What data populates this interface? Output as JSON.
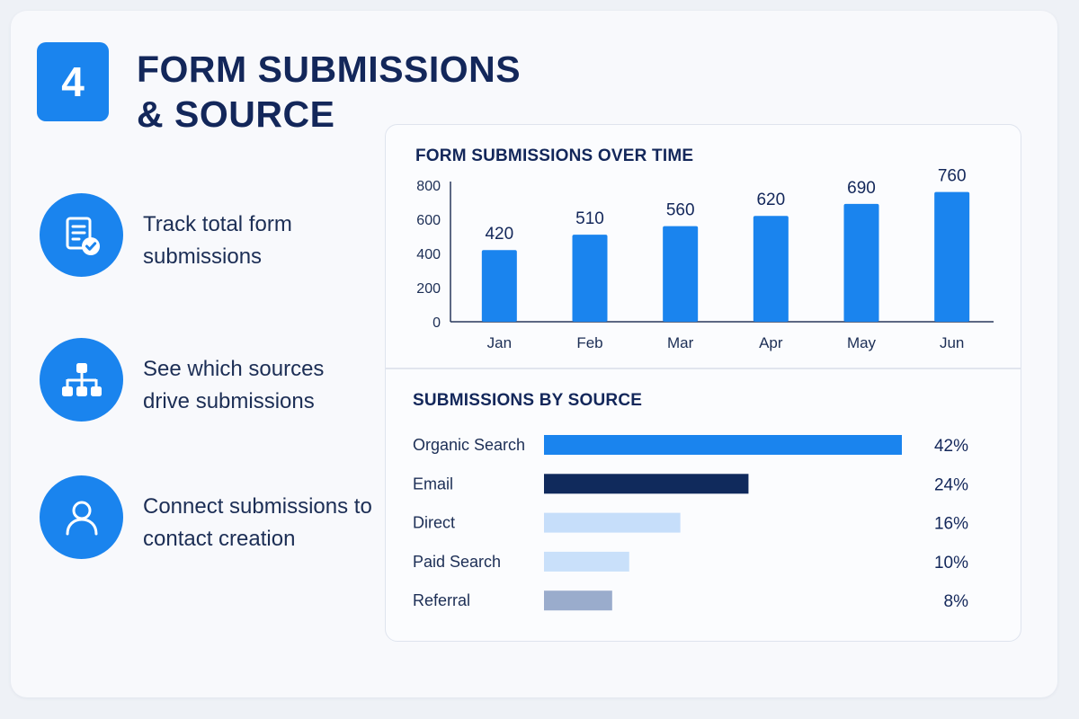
{
  "header": {
    "step_number": "4",
    "title": "FORM SUBMISSIONS\n& SOURCE"
  },
  "features": [
    {
      "icon": "form-check-icon",
      "text": "Track total form submissions"
    },
    {
      "icon": "hierarchy-icon",
      "text": "See which sources drive submissions"
    },
    {
      "icon": "user-icon",
      "text": "Connect submissions to contact creation"
    }
  ],
  "colors": {
    "accent": "#1a84ee",
    "navy": "#13275a",
    "bar_navy": "#102a5c",
    "bar_light": "#c6defa",
    "bar_gray": "#9aaccc"
  },
  "chart_data": [
    {
      "type": "bar",
      "title": "FORM SUBMISSIONS OVER TIME",
      "categories": [
        "Jan",
        "Feb",
        "Mar",
        "Apr",
        "May",
        "Jun"
      ],
      "values": [
        420,
        510,
        560,
        620,
        690,
        760
      ],
      "data_labels": [
        "420",
        "510",
        "560",
        "620",
        "690",
        "760"
      ],
      "yticks": [
        0,
        200,
        400,
        600,
        800
      ],
      "ylim": [
        0,
        800
      ],
      "xlabel": "",
      "ylabel": "",
      "grid": false,
      "color": "#1a84ee"
    },
    {
      "type": "bar",
      "orientation": "horizontal",
      "title": "SUBMISSIONS BY SOURCE",
      "categories": [
        "Organic Search",
        "Email",
        "Direct",
        "Paid Search",
        "Referral"
      ],
      "values": [
        42,
        24,
        16,
        10,
        8
      ],
      "value_labels": [
        "42%",
        "24%",
        "16%",
        "10%",
        "8%"
      ],
      "unit": "%",
      "colors": [
        "#1a84ee",
        "#102a5c",
        "#c6defa",
        "#c9e0fa",
        "#9aaccc"
      ]
    }
  ]
}
